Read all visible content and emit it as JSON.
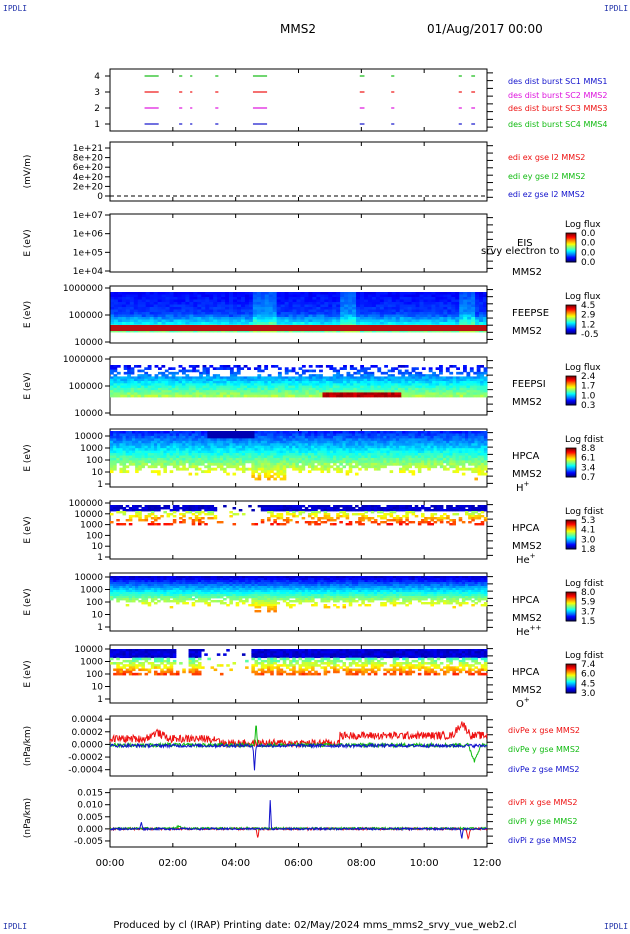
{
  "corner_marks": {
    "tl": "IPDLI",
    "tr": "IPDLI",
    "bl": "IPDLI",
    "br": "IPDLI"
  },
  "header": {
    "mission": "MMS2",
    "datetime": "01/Aug/2017 00:00"
  },
  "footer": {
    "text": "Produced by cl (IRAP)   Printing date: 02/May/2024   mms_mms2_srvy_vue_web2.cl"
  },
  "time_axis": {
    "range_hours": [
      0,
      12
    ],
    "ticks": [
      {
        "h": 0,
        "label": "00:00"
      },
      {
        "h": 2,
        "label": "02:00"
      },
      {
        "h": 4,
        "label": "04:00"
      },
      {
        "h": 6,
        "label": "06:00"
      },
      {
        "h": 8,
        "label": "08:00"
      },
      {
        "h": 10,
        "label": "10:00"
      },
      {
        "h": 12,
        "label": "12:00"
      }
    ]
  },
  "colors": {
    "blue": "#1111cc",
    "red": "#ee1111",
    "green": "#11bb11",
    "magenta": "#dd11dd",
    "frame": "#000000"
  },
  "chart_data": [
    {
      "type": "scatter",
      "name": "burst-availability",
      "ylabels": [
        "1",
        "2",
        "3",
        "4"
      ],
      "legend": [
        {
          "text": "des dist burst SC1 MMS1",
          "color": "#1111cc"
        },
        {
          "text": "des dist burst SC2 MMS2",
          "color": "#dd11dd"
        },
        {
          "text": "des dist burst SC3 MMS3",
          "color": "#ee1111"
        },
        {
          "text": "des dist burst SC4 MMS4",
          "color": "#11bb11"
        }
      ],
      "intervals_hours": [
        [
          1.1,
          1.55
        ],
        [
          2.2,
          2.3
        ],
        [
          2.55,
          2.62
        ],
        [
          3.35,
          3.45
        ],
        [
          4.55,
          5.0
        ],
        [
          7.95,
          8.1
        ],
        [
          8.95,
          9.05
        ],
        [
          11.1,
          11.2
        ],
        [
          11.5,
          11.62
        ]
      ]
    },
    {
      "type": "line",
      "name": "edi",
      "ylabel": "(mV/m)",
      "yticks": [
        "0",
        "2e+20",
        "4e+20",
        "6e+20",
        "8e+20",
        "1e+21"
      ],
      "legend": [
        {
          "text": "edi ex gse l2 MMS2",
          "color": "#ee1111"
        },
        {
          "text": "edi ey gse l2 MMS2",
          "color": "#11bb11"
        },
        {
          "text": "edi ez gse l2 MMS2",
          "color": "#1111cc"
        }
      ]
    },
    {
      "type": "heatmap",
      "name": "eis",
      "ylabel": "E (eV)",
      "yticks": [
        "1e+04",
        "1e+05",
        "1e+06",
        "1e+07"
      ],
      "instrument": "EIS",
      "sc": "MMS2",
      "overlay": "srvy electron to",
      "colorbar_title": "Log flux",
      "colorbar_ticks": [
        "0.0",
        "0.0",
        "0.0",
        "0.0"
      ]
    },
    {
      "type": "heatmap",
      "name": "feeps-electron",
      "ylabel": "E (eV)",
      "yticks": [
        "10000",
        "100000",
        "1000000"
      ],
      "instrument": "FEEPSE",
      "sc": "MMS2",
      "colorbar_title": "Log flux",
      "colorbar_ticks": [
        "4.5",
        "2.9",
        "1.2",
        "-0.5"
      ]
    },
    {
      "type": "heatmap",
      "name": "feeps-ion",
      "ylabel": "E (eV)",
      "yticks": [
        "10000",
        "100000",
        "1000000"
      ],
      "instrument": "FEEPSI",
      "sc": "MMS2",
      "colorbar_title": "Log flux",
      "colorbar_ticks": [
        "2.4",
        "1.7",
        "1.0",
        "0.3"
      ]
    },
    {
      "type": "heatmap",
      "name": "hpca-h",
      "ylabel": "E (eV)",
      "yticks": [
        "1",
        "10",
        "100",
        "1000",
        "10000"
      ],
      "instrument": "HPCA",
      "sc": "MMS2",
      "species": "H",
      "charge": "+",
      "colorbar_title": "Log fdist",
      "colorbar_ticks": [
        "8.8",
        "6.1",
        "3.4",
        "0.7"
      ]
    },
    {
      "type": "heatmap",
      "name": "hpca-he",
      "ylabel": "E (eV)",
      "yticks": [
        "1",
        "10",
        "100",
        "1000",
        "10000",
        "100000"
      ],
      "instrument": "HPCA",
      "sc": "MMS2",
      "species": "He",
      "charge": "+",
      "colorbar_title": "Log fdist",
      "colorbar_ticks": [
        "5.3",
        "4.1",
        "3.0",
        "1.8"
      ]
    },
    {
      "type": "heatmap",
      "name": "hpca-hepp",
      "ylabel": "E (eV)",
      "yticks": [
        "1",
        "10",
        "100",
        "1000",
        "10000"
      ],
      "instrument": "HPCA",
      "sc": "MMS2",
      "species": "He",
      "charge": "++",
      "colorbar_title": "Log fdist",
      "colorbar_ticks": [
        "8.0",
        "5.9",
        "3.7",
        "1.5"
      ]
    },
    {
      "type": "heatmap",
      "name": "hpca-o",
      "ylabel": "E (eV)",
      "yticks": [
        "1",
        "10",
        "100",
        "1000",
        "10000"
      ],
      "instrument": "HPCA",
      "sc": "MMS2",
      "species": "O",
      "charge": "+",
      "colorbar_title": "Log fdist",
      "colorbar_ticks": [
        "7.4",
        "6.0",
        "4.5",
        "3.0"
      ]
    },
    {
      "type": "line",
      "name": "divpe",
      "ylabel": "(nPa/km)",
      "yticks": [
        "-0.0004",
        "-0.0002",
        "0.0000",
        "0.0002",
        "0.0004"
      ],
      "ylim": [
        -0.0005,
        0.00045
      ],
      "legend": [
        {
          "text": "divPe x gse MMS2",
          "color": "#ee1111"
        },
        {
          "text": "divPe y gse MMS2",
          "color": "#11bb11"
        },
        {
          "text": "divPe z gse MMS2",
          "color": "#1111cc"
        }
      ]
    },
    {
      "type": "line",
      "name": "divpi",
      "ylabel": "(nPa/km)",
      "yticks": [
        "-0.005",
        "0.000",
        "0.005",
        "0.010",
        "0.015"
      ],
      "ylim": [
        -0.0075,
        0.0165
      ],
      "legend": [
        {
          "text": "divPi x gse MMS2",
          "color": "#ee1111"
        },
        {
          "text": "divPi y gse MMS2",
          "color": "#11bb11"
        },
        {
          "text": "divPi z gse MMS2",
          "color": "#1111cc"
        }
      ]
    }
  ]
}
